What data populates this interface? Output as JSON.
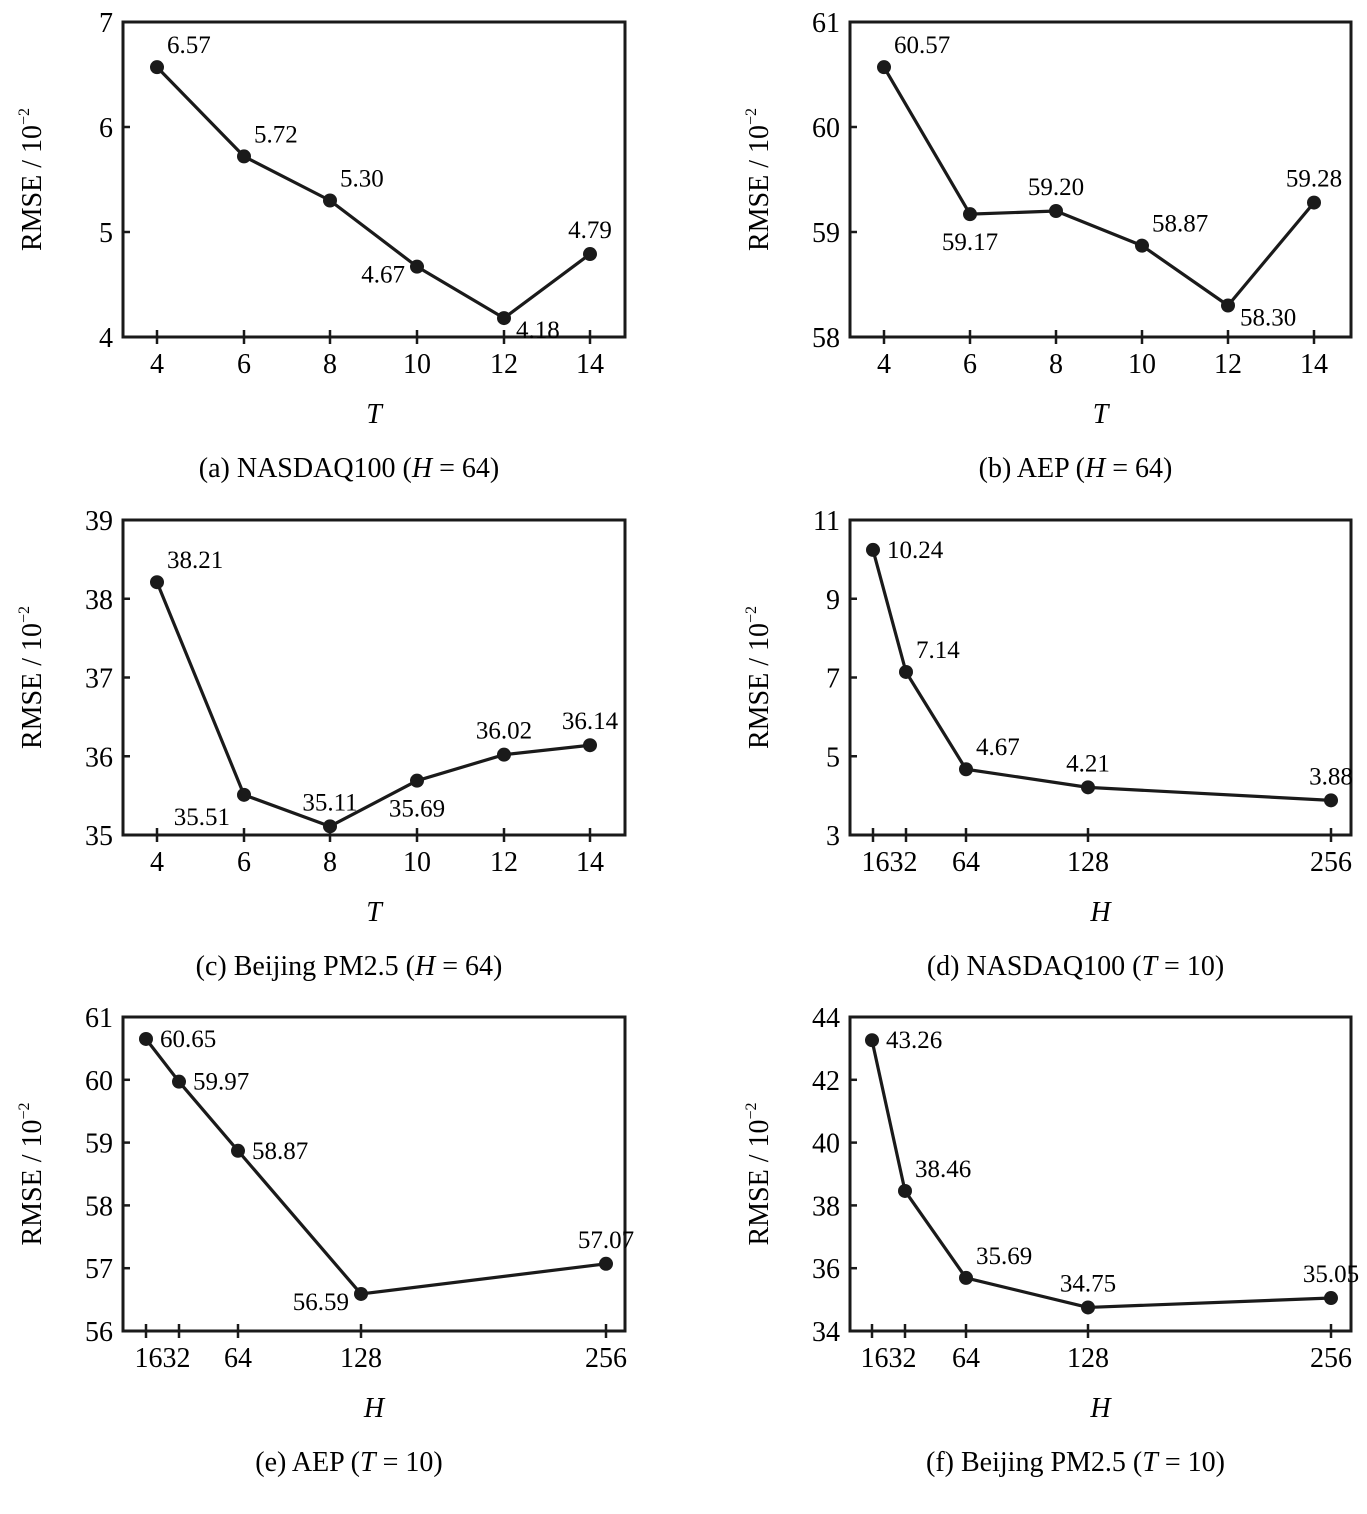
{
  "figure": {
    "ylabel_main": "RMSE / 10",
    "ylabel_exp": "−2"
  },
  "chart_data": [
    {
      "id": "a",
      "type": "line",
      "caption_prefix": "(a)  NASDAQ100 (",
      "caption_var": "H",
      "caption_suffix": " = 64)",
      "xlabel": "T",
      "ylabel": "RMSE / 10^-2",
      "x": [
        4,
        6,
        8,
        10,
        12,
        14
      ],
      "x_tick_labels": [
        "4",
        "6",
        "8",
        "10",
        "12",
        "14"
      ],
      "x_scale": "linear",
      "xlim": [
        3.2,
        14.8
      ],
      "ylim": [
        4,
        7
      ],
      "y_ticks": [
        4,
        5,
        6,
        7
      ],
      "values": [
        6.57,
        5.72,
        5.3,
        4.67,
        4.18,
        4.79
      ],
      "data_labels": [
        "6.57",
        "5.72",
        "5.30",
        "4.67",
        "4.18",
        "4.79"
      ],
      "label_positions": [
        "above-right",
        "above-right",
        "above-right",
        "left",
        "below-right",
        "above"
      ],
      "grid": false
    },
    {
      "id": "b",
      "type": "line",
      "caption_prefix": "(b)  AEP (",
      "caption_var": "H",
      "caption_suffix": " = 64)",
      "xlabel": "T",
      "ylabel": "RMSE / 10^-2",
      "x": [
        4,
        6,
        8,
        10,
        12,
        14
      ],
      "x_tick_labels": [
        "4",
        "6",
        "8",
        "10",
        "12",
        "14"
      ],
      "x_scale": "linear",
      "xlim": [
        3.2,
        14.8
      ],
      "ylim": [
        58,
        61
      ],
      "y_ticks": [
        58,
        59,
        60,
        61
      ],
      "values": [
        60.57,
        59.17,
        59.2,
        58.87,
        58.3,
        59.28
      ],
      "data_labels": [
        "60.57",
        "59.17",
        "59.20",
        "58.87",
        "58.30",
        "59.28"
      ],
      "label_positions": [
        "above-right",
        "below",
        "above",
        "above-right",
        "below-right",
        "above"
      ],
      "grid": false
    },
    {
      "id": "c",
      "type": "line",
      "caption_prefix": "(c)  Beijing PM2.5 (",
      "caption_var": "H",
      "caption_suffix": " = 64)",
      "xlabel": "T",
      "ylabel": "RMSE / 10^-2",
      "x": [
        4,
        6,
        8,
        10,
        12,
        14
      ],
      "x_tick_labels": [
        "4",
        "6",
        "8",
        "10",
        "12",
        "14"
      ],
      "x_scale": "linear",
      "xlim": [
        3.2,
        14.8
      ],
      "ylim": [
        35,
        39
      ],
      "y_ticks": [
        35,
        36,
        37,
        38,
        39
      ],
      "values": [
        38.21,
        35.51,
        35.11,
        35.69,
        36.02,
        36.14
      ],
      "data_labels": [
        "38.21",
        "35.51",
        "35.11",
        "35.69",
        "36.02",
        "36.14"
      ],
      "label_positions": [
        "above-right",
        "below-left",
        "above",
        "below",
        "above",
        "above"
      ],
      "grid": false
    },
    {
      "id": "d",
      "type": "line",
      "caption_prefix": "(d)  NASDAQ100 (",
      "caption_var": "T",
      "caption_suffix": " = 10)",
      "xlabel": "H",
      "ylabel": "RMSE / 10^-2",
      "x": [
        16,
        32,
        64,
        128,
        256
      ],
      "x_tick_labels": [
        "16",
        "32",
        "64",
        "128",
        "256"
      ],
      "x_tick_label_text": [
        "1632",
        "64",
        "128",
        "256"
      ],
      "x_scale": "linear",
      "xlim": [
        5,
        270
      ],
      "ylim": [
        3,
        11
      ],
      "y_ticks": [
        3,
        5,
        7,
        9,
        11
      ],
      "values": [
        10.24,
        7.14,
        4.67,
        4.21,
        3.88
      ],
      "data_labels": [
        "10.24",
        "7.14",
        "4.67",
        "4.21",
        "3.88"
      ],
      "label_positions": [
        "right",
        "above-right",
        "above-right",
        "above",
        "above"
      ],
      "grid": false
    },
    {
      "id": "e",
      "type": "line",
      "caption_prefix": "(e)  AEP (",
      "caption_var": "T",
      "caption_suffix": " = 10)",
      "xlabel": "H",
      "ylabel": "RMSE / 10^-2",
      "x": [
        16,
        32,
        64,
        128,
        256
      ],
      "x_tick_labels": [
        "16",
        "32",
        "64",
        "128",
        "256"
      ],
      "x_tick_label_text": [
        "1632",
        "64",
        "128",
        "256"
      ],
      "x_scale": "linear",
      "xlim": [
        5,
        270
      ],
      "ylim": [
        56,
        61
      ],
      "y_ticks": [
        56,
        57,
        58,
        59,
        60,
        61
      ],
      "values": [
        60.65,
        59.97,
        58.87,
        56.59,
        57.07
      ],
      "data_labels": [
        "60.65",
        "59.97",
        "58.87",
        "56.59",
        "57.07"
      ],
      "label_positions": [
        "right",
        "right",
        "right",
        "left",
        "above"
      ],
      "grid": false
    },
    {
      "id": "f",
      "type": "line",
      "caption_prefix": "(f)  Beijing PM2.5 (",
      "caption_var": "T",
      "caption_suffix": " = 10)",
      "xlabel": "H",
      "ylabel": "RMSE / 10^-2",
      "x": [
        16,
        32,
        64,
        128,
        256
      ],
      "x_tick_labels": [
        "16",
        "32",
        "64",
        "128",
        "256"
      ],
      "x_tick_label_text": [
        "1632",
        "64",
        "128",
        "256"
      ],
      "x_scale": "linear",
      "xlim": [
        5,
        270
      ],
      "ylim": [
        34,
        44
      ],
      "y_ticks": [
        34,
        36,
        38,
        40,
        42,
        44
      ],
      "values": [
        43.26,
        38.46,
        35.69,
        34.75,
        35.05
      ],
      "data_labels": [
        "43.26",
        "38.46",
        "35.69",
        "34.75",
        "35.05"
      ],
      "label_positions": [
        "right",
        "above-right",
        "above-right",
        "above",
        "above"
      ],
      "grid": false
    }
  ]
}
